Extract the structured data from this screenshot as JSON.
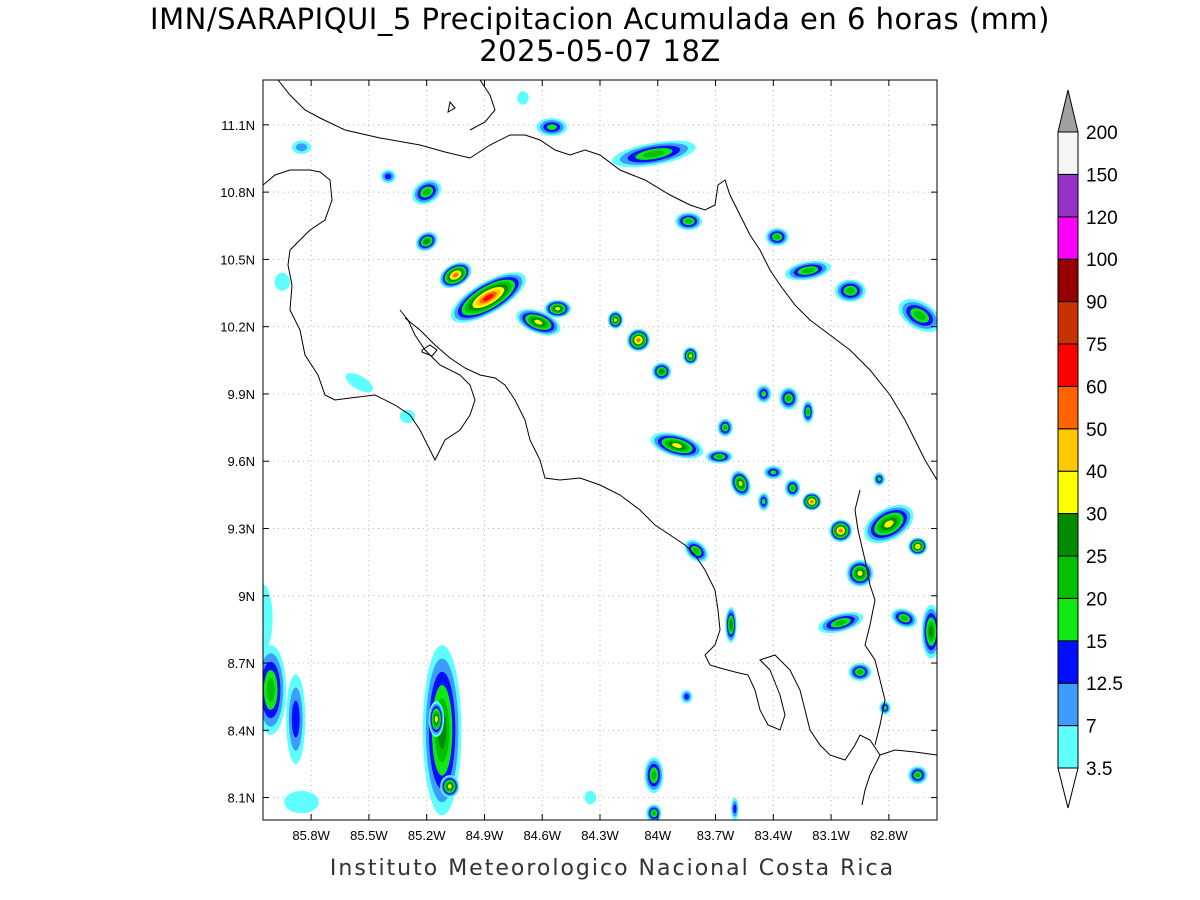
{
  "title": {
    "line1": "IMN/SARAPIQUI_5 Precipitacion Acumulada en 6 horas (mm)",
    "line2": "2025-05-07 18Z"
  },
  "footer": "Instituto Meteorologico Nacional Costa Rica",
  "map": {
    "lon_range": [
      -86.05,
      -82.55
    ],
    "lat_range": [
      8.0,
      11.3
    ],
    "lon_ticks": [
      "85.8W",
      "85.5W",
      "85.2W",
      "84.9W",
      "84.6W",
      "84.3W",
      "84W",
      "83.7W",
      "83.4W",
      "83.1W",
      "82.8W"
    ],
    "lon_tick_values": [
      -85.8,
      -85.5,
      -85.2,
      -84.9,
      -84.6,
      -84.3,
      -84.0,
      -83.7,
      -83.4,
      -83.1,
      -82.8
    ],
    "lat_ticks": [
      "11.1N",
      "10.8N",
      "10.5N",
      "10.2N",
      "9.9N",
      "9.6N",
      "9.3N",
      "9N",
      "8.7N",
      "8.4N",
      "8.1N"
    ],
    "lat_tick_values": [
      11.1,
      10.8,
      10.5,
      10.2,
      9.9,
      9.6,
      9.3,
      9.0,
      8.7,
      8.4,
      8.1
    ],
    "grid": true
  },
  "colorbar": {
    "labels": [
      "3.5",
      "7",
      "12.5",
      "15",
      "20",
      "25",
      "30",
      "40",
      "50",
      "60",
      "75",
      "90",
      "100",
      "120",
      "150",
      "200"
    ],
    "colors": [
      "#60ffff",
      "#3c9cff",
      "#0010ff",
      "#10e810",
      "#00c000",
      "#008c00",
      "#ffff00",
      "#ffc800",
      "#ff6400",
      "#ff0000",
      "#c83200",
      "#960000",
      "#ff00ff",
      "#9632c8",
      "#f5f5f5",
      "#a0a0a0"
    ]
  },
  "precip_cells": [
    {
      "lon": -84.88,
      "lat": 10.33,
      "rx": 0.22,
      "ry": 0.07,
      "rot": 30,
      "level": 10
    },
    {
      "lon": -85.05,
      "lat": 10.43,
      "rx": 0.09,
      "ry": 0.05,
      "rot": 30,
      "level": 9
    },
    {
      "lon": -84.62,
      "lat": 10.22,
      "rx": 0.12,
      "ry": 0.05,
      "rot": -20,
      "level": 7
    },
    {
      "lon": -84.52,
      "lat": 10.28,
      "rx": 0.07,
      "ry": 0.04,
      "rot": 0,
      "level": 7
    },
    {
      "lon": -84.1,
      "lat": 10.14,
      "rx": 0.06,
      "ry": 0.05,
      "rot": 30,
      "level": 9
    },
    {
      "lon": -84.22,
      "lat": 10.23,
      "rx": 0.04,
      "ry": 0.04,
      "rot": 0,
      "level": 7
    },
    {
      "lon": -83.98,
      "lat": 10.0,
      "rx": 0.05,
      "ry": 0.04,
      "rot": 0,
      "level": 6
    },
    {
      "lon": -83.83,
      "lat": 10.07,
      "rx": 0.04,
      "ry": 0.04,
      "rot": 0,
      "level": 7
    },
    {
      "lon": -85.2,
      "lat": 10.58,
      "rx": 0.06,
      "ry": 0.04,
      "rot": 30,
      "level": 6
    },
    {
      "lon": -85.2,
      "lat": 10.8,
      "rx": 0.08,
      "ry": 0.05,
      "rot": 30,
      "level": 5
    },
    {
      "lon": -84.55,
      "lat": 11.09,
      "rx": 0.08,
      "ry": 0.04,
      "rot": 0,
      "level": 4
    },
    {
      "lon": -84.02,
      "lat": 10.97,
      "rx": 0.22,
      "ry": 0.05,
      "rot": 10,
      "level": 5
    },
    {
      "lon": -83.84,
      "lat": 10.67,
      "rx": 0.07,
      "ry": 0.04,
      "rot": 0,
      "level": 5
    },
    {
      "lon": -83.38,
      "lat": 10.6,
      "rx": 0.06,
      "ry": 0.04,
      "rot": 0,
      "level": 5
    },
    {
      "lon": -83.22,
      "lat": 10.45,
      "rx": 0.12,
      "ry": 0.04,
      "rot": 10,
      "level": 5
    },
    {
      "lon": -83.0,
      "lat": 10.36,
      "rx": 0.08,
      "ry": 0.05,
      "rot": 0,
      "level": 5
    },
    {
      "lon": -82.64,
      "lat": 10.25,
      "rx": 0.12,
      "ry": 0.06,
      "rot": -30,
      "level": 5
    },
    {
      "lon": -83.9,
      "lat": 9.67,
      "rx": 0.14,
      "ry": 0.05,
      "rot": -15,
      "level": 7
    },
    {
      "lon": -83.57,
      "lat": 9.5,
      "rx": 0.05,
      "ry": 0.06,
      "rot": 20,
      "level": 7
    },
    {
      "lon": -83.2,
      "lat": 9.42,
      "rx": 0.05,
      "ry": 0.04,
      "rot": 0,
      "level": 9
    },
    {
      "lon": -83.05,
      "lat": 9.29,
      "rx": 0.06,
      "ry": 0.05,
      "rot": 20,
      "level": 9
    },
    {
      "lon": -82.8,
      "lat": 9.32,
      "rx": 0.14,
      "ry": 0.07,
      "rot": 30,
      "level": 7
    },
    {
      "lon": -82.65,
      "lat": 9.22,
      "rx": 0.05,
      "ry": 0.04,
      "rot": 0,
      "level": 8
    },
    {
      "lon": -82.95,
      "lat": 9.1,
      "rx": 0.07,
      "ry": 0.06,
      "rot": 0,
      "level": 7
    },
    {
      "lon": -83.8,
      "lat": 9.2,
      "rx": 0.07,
      "ry": 0.04,
      "rot": -40,
      "level": 5
    },
    {
      "lon": -83.62,
      "lat": 8.87,
      "rx": 0.03,
      "ry": 0.08,
      "rot": 0,
      "level": 6
    },
    {
      "lon": -83.05,
      "lat": 8.88,
      "rx": 0.12,
      "ry": 0.04,
      "rot": 15,
      "level": 5
    },
    {
      "lon": -82.72,
      "lat": 8.9,
      "rx": 0.07,
      "ry": 0.04,
      "rot": -20,
      "level": 5
    },
    {
      "lon": -82.58,
      "lat": 8.84,
      "rx": 0.05,
      "ry": 0.12,
      "rot": 0,
      "level": 6
    },
    {
      "lon": -82.95,
      "lat": 8.66,
      "rx": 0.06,
      "ry": 0.04,
      "rot": 0,
      "level": 5
    },
    {
      "lon": -83.65,
      "lat": 9.75,
      "rx": 0.04,
      "ry": 0.04,
      "rot": 0,
      "level": 5
    },
    {
      "lon": -83.45,
      "lat": 9.9,
      "rx": 0.04,
      "ry": 0.04,
      "rot": 0,
      "level": 4
    },
    {
      "lon": -83.32,
      "lat": 9.88,
      "rx": 0.05,
      "ry": 0.05,
      "rot": 0,
      "level": 5
    },
    {
      "lon": -83.22,
      "lat": 9.82,
      "rx": 0.03,
      "ry": 0.05,
      "rot": 0,
      "level": 5
    },
    {
      "lon": -83.68,
      "lat": 9.62,
      "rx": 0.07,
      "ry": 0.03,
      "rot": 0,
      "level": 5
    },
    {
      "lon": -83.4,
      "lat": 9.55,
      "rx": 0.05,
      "ry": 0.03,
      "rot": 0,
      "level": 4
    },
    {
      "lon": -83.3,
      "lat": 9.48,
      "rx": 0.04,
      "ry": 0.04,
      "rot": 0,
      "level": 5
    },
    {
      "lon": -83.45,
      "lat": 9.42,
      "rx": 0.03,
      "ry": 0.04,
      "rot": 0,
      "level": 4
    },
    {
      "lon": -82.85,
      "lat": 9.52,
      "rx": 0.03,
      "ry": 0.03,
      "rot": 0,
      "level": 4
    },
    {
      "lon": -82.82,
      "lat": 8.5,
      "rx": 0.03,
      "ry": 0.03,
      "rot": 0,
      "level": 4
    },
    {
      "lon": -82.65,
      "lat": 8.2,
      "rx": 0.05,
      "ry": 0.04,
      "rot": 0,
      "level": 5
    },
    {
      "lon": -83.85,
      "lat": 8.55,
      "rx": 0.03,
      "ry": 0.03,
      "rot": 0,
      "level": 3
    },
    {
      "lon": -84.02,
      "lat": 8.2,
      "rx": 0.05,
      "ry": 0.08,
      "rot": 0,
      "level": 5
    },
    {
      "lon": -84.02,
      "lat": 8.03,
      "rx": 0.04,
      "ry": 0.04,
      "rot": 0,
      "level": 5
    },
    {
      "lon": -83.6,
      "lat": 8.05,
      "rx": 0.02,
      "ry": 0.05,
      "rot": 0,
      "level": 3
    },
    {
      "lon": -85.12,
      "lat": 8.4,
      "rx": 0.1,
      "ry": 0.38,
      "rot": 0,
      "level": 6
    },
    {
      "lon": -85.15,
      "lat": 8.45,
      "rx": 0.04,
      "ry": 0.08,
      "rot": 0,
      "level": 7
    },
    {
      "lon": -85.08,
      "lat": 8.15,
      "rx": 0.05,
      "ry": 0.05,
      "rot": 0,
      "level": 7
    },
    {
      "lon": -86.01,
      "lat": 8.58,
      "rx": 0.08,
      "ry": 0.2,
      "rot": 0,
      "level": 5
    },
    {
      "lon": -85.88,
      "lat": 8.45,
      "rx": 0.05,
      "ry": 0.2,
      "rot": 0,
      "level": 3
    },
    {
      "lon": -86.05,
      "lat": 8.9,
      "rx": 0.05,
      "ry": 0.15,
      "rot": 0,
      "level": 1
    },
    {
      "lon": -85.85,
      "lat": 8.08,
      "rx": 0.09,
      "ry": 0.05,
      "rot": 0,
      "level": 1
    },
    {
      "lon": -84.35,
      "lat": 8.1,
      "rx": 0.03,
      "ry": 0.03,
      "rot": 0,
      "level": 1
    },
    {
      "lon": -85.55,
      "lat": 9.95,
      "rx": 0.08,
      "ry": 0.03,
      "rot": -30,
      "level": 1
    },
    {
      "lon": -85.3,
      "lat": 9.8,
      "rx": 0.04,
      "ry": 0.03,
      "rot": 0,
      "level": 1
    },
    {
      "lon": -85.85,
      "lat": 11.0,
      "rx": 0.05,
      "ry": 0.03,
      "rot": 0,
      "level": 2
    },
    {
      "lon": -85.95,
      "lat": 10.4,
      "rx": 0.04,
      "ry": 0.04,
      "rot": 0,
      "level": 1
    },
    {
      "lon": -84.7,
      "lat": 11.22,
      "rx": 0.03,
      "ry": 0.03,
      "rot": 0,
      "level": 1
    },
    {
      "lon": -85.4,
      "lat": 10.87,
      "rx": 0.04,
      "ry": 0.03,
      "rot": 0,
      "level": 3
    }
  ]
}
